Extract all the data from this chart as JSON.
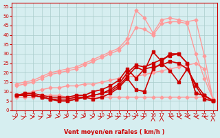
{
  "title": "",
  "xlabel": "Vent moyen/en rafales ( km/h )",
  "ylabel": "",
  "bg_color": "#d6eef0",
  "grid_color": "#aacccc",
  "line_color_dark": "#cc0000",
  "line_color_light": "#ff9999",
  "xlim": [
    -0.5,
    23.5
  ],
  "ylim": [
    0,
    57
  ],
  "xticks": [
    0,
    1,
    2,
    3,
    4,
    5,
    6,
    7,
    8,
    9,
    10,
    11,
    12,
    13,
    14,
    15,
    16,
    17,
    18,
    19,
    20,
    21,
    22,
    23
  ],
  "yticks": [
    0,
    5,
    10,
    15,
    20,
    25,
    30,
    35,
    40,
    45,
    50,
    55
  ],
  "series": [
    {
      "color": "#ff9999",
      "lw": 1.0,
      "marker": "D",
      "ms": 2.5,
      "x": [
        0,
        1,
        2,
        3,
        4,
        5,
        6,
        7,
        8,
        9,
        10,
        11,
        12,
        13,
        14,
        15,
        16,
        17,
        18,
        19,
        20,
        21,
        22,
        23
      ],
      "y": [
        14,
        15,
        16,
        18,
        20,
        21,
        22,
        23,
        25,
        27,
        29,
        31,
        33,
        38,
        53,
        49,
        41,
        48,
        49,
        48,
        47,
        48,
        29,
        6
      ]
    },
    {
      "color": "#ff9999",
      "lw": 1.0,
      "marker": "D",
      "ms": 2.5,
      "x": [
        0,
        1,
        2,
        3,
        4,
        5,
        6,
        7,
        8,
        9,
        10,
        11,
        12,
        13,
        14,
        15,
        16,
        17,
        18,
        19,
        20,
        21,
        22,
        23
      ],
      "y": [
        13,
        14,
        15,
        17,
        19,
        20,
        21,
        22,
        24,
        26,
        28,
        30,
        32,
        36,
        44,
        43,
        40,
        46,
        47,
        47,
        46,
        30,
        17,
        6
      ]
    },
    {
      "color": "#ff9999",
      "lw": 1.0,
      "marker": "D",
      "ms": 2.5,
      "x": [
        0,
        1,
        2,
        3,
        4,
        5,
        6,
        7,
        8,
        9,
        10,
        11,
        12,
        13,
        14,
        15,
        16,
        17,
        18,
        19,
        20,
        21,
        22,
        23
      ],
      "y": [
        8,
        9,
        10,
        11,
        12,
        12,
        13,
        13,
        14,
        14,
        15,
        16,
        17,
        18,
        18,
        19,
        20,
        21,
        22,
        23,
        24,
        25,
        22,
        6
      ]
    },
    {
      "color": "#ff9999",
      "lw": 1.0,
      "marker": "D",
      "ms": 2.5,
      "x": [
        0,
        1,
        2,
        3,
        4,
        5,
        6,
        7,
        8,
        9,
        10,
        11,
        12,
        13,
        14,
        15,
        16,
        17,
        18,
        19,
        20,
        21,
        22,
        23
      ],
      "y": [
        7,
        7,
        7,
        8,
        8,
        8,
        7,
        7,
        7,
        7,
        7,
        7,
        7,
        7,
        7,
        7,
        7,
        7,
        7,
        7,
        7,
        7,
        7,
        6
      ]
    },
    {
      "color": "#cc0000",
      "lw": 1.2,
      "marker": "s",
      "ms": 2.5,
      "x": [
        0,
        1,
        2,
        3,
        4,
        5,
        6,
        7,
        8,
        9,
        10,
        11,
        12,
        13,
        14,
        15,
        16,
        17,
        18,
        19,
        20,
        21,
        22,
        23
      ],
      "y": [
        8,
        8,
        8,
        7,
        6,
        6,
        6,
        7,
        7,
        8,
        9,
        10,
        13,
        18,
        23,
        21,
        31,
        26,
        30,
        30,
        25,
        9,
        8,
        5
      ]
    },
    {
      "color": "#cc0000",
      "lw": 1.2,
      "marker": "s",
      "ms": 2.5,
      "x": [
        0,
        1,
        2,
        3,
        4,
        5,
        6,
        7,
        8,
        9,
        10,
        11,
        12,
        13,
        14,
        15,
        16,
        17,
        18,
        19,
        20,
        21,
        22,
        23
      ],
      "y": [
        8,
        8,
        8,
        7,
        6,
        5,
        5,
        6,
        7,
        8,
        9,
        11,
        14,
        20,
        24,
        23,
        25,
        27,
        29,
        30,
        25,
        9,
        8,
        5
      ]
    },
    {
      "color": "#cc0000",
      "lw": 1.2,
      "marker": "s",
      "ms": 2.5,
      "x": [
        0,
        1,
        2,
        3,
        4,
        5,
        6,
        7,
        8,
        9,
        10,
        11,
        12,
        13,
        14,
        15,
        16,
        17,
        18,
        19,
        20,
        21,
        22,
        23
      ],
      "y": [
        8,
        9,
        9,
        8,
        7,
        7,
        7,
        8,
        8,
        10,
        11,
        13,
        16,
        22,
        17,
        22,
        23,
        24,
        26,
        25,
        22,
        14,
        8,
        5
      ]
    },
    {
      "color": "#cc0000",
      "lw": 1.2,
      "marker": "s",
      "ms": 2.5,
      "x": [
        0,
        1,
        2,
        3,
        4,
        5,
        6,
        7,
        8,
        9,
        10,
        11,
        12,
        13,
        14,
        15,
        16,
        17,
        18,
        19,
        20,
        21,
        22,
        23
      ],
      "y": [
        8,
        8,
        8,
        7,
        6,
        5,
        5,
        6,
        7,
        6,
        7,
        9,
        12,
        17,
        11,
        10,
        22,
        25,
        21,
        15,
        22,
        13,
        6,
        5
      ]
    }
  ],
  "wind_arrows": [
    0,
    1,
    2,
    3,
    4,
    5,
    6,
    7,
    8,
    9,
    10,
    11,
    12,
    13,
    14,
    15,
    16,
    17,
    18,
    19,
    20,
    21,
    22,
    23
  ],
  "arrow_angles": [
    45,
    45,
    90,
    45,
    135,
    135,
    135,
    90,
    135,
    90,
    45,
    90,
    45,
    45,
    45,
    45,
    0,
    0,
    315,
    270,
    270,
    270,
    315,
    0
  ]
}
